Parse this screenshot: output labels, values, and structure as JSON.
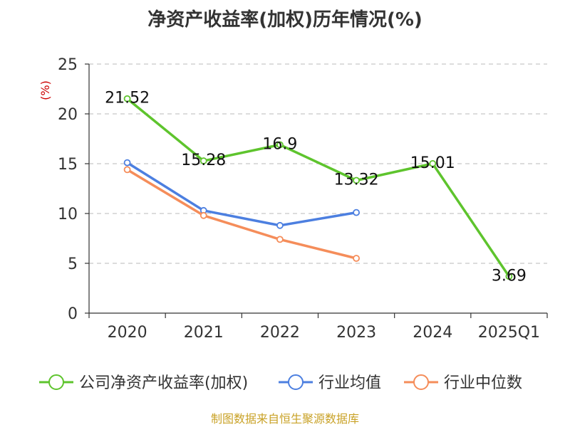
{
  "chart_data": {
    "type": "line",
    "title": "净资产收益率(加权)历年情况(%)",
    "unit_label": "(%)",
    "categories": [
      "2020",
      "2021",
      "2022",
      "2023",
      "2024",
      "2025Q1"
    ],
    "ylim": [
      0,
      25
    ],
    "yticks": [
      0,
      5,
      10,
      15,
      20,
      25
    ],
    "grid": true,
    "legend_position": "bottom",
    "series": [
      {
        "name": "公司净资产收益率(加权)",
        "color": "#5ec42d",
        "values": [
          21.52,
          15.28,
          16.9,
          13.32,
          15.01,
          3.69
        ],
        "labels": [
          "21.52",
          "15.28",
          "16.9",
          "13.32",
          "15.01",
          "3.69"
        ]
      },
      {
        "name": "行业均值",
        "color": "#4c7fe0",
        "values": [
          15.1,
          10.3,
          8.8,
          10.1,
          null,
          null
        ]
      },
      {
        "name": "行业中位数",
        "color": "#f58d5a",
        "values": [
          14.4,
          9.8,
          7.4,
          5.5,
          null,
          null
        ]
      }
    ]
  },
  "footer": {
    "source": "制图数据来自恒生聚源数据库"
  }
}
